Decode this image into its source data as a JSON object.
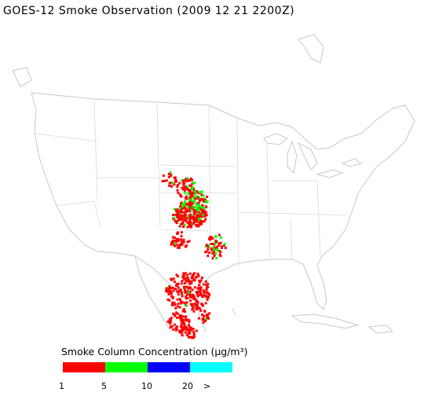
{
  "title": "GOES-12 Smoke Observation (2009 12 21  2200Z)",
  "legend": {
    "title": "Smoke Column Concentration (μg/m³)",
    "bins": [
      {
        "name": "bin-1-5",
        "color": "#ff0000"
      },
      {
        "name": "bin-5-10",
        "color": "#00ff00"
      },
      {
        "name": "bin-10-20",
        "color": "#0000ff"
      },
      {
        "name": "bin-20-plus",
        "color": "#00ffff"
      }
    ],
    "ticks": [
      "1",
      "5",
      "10",
      "20",
      ">"
    ]
  },
  "colors": {
    "outline": "#c8c8c8",
    "smoke_low": "#ff0000",
    "smoke_mid": "#00ff00",
    "smoke_high": "#0000ff",
    "smoke_max": "#00ffff"
  }
}
